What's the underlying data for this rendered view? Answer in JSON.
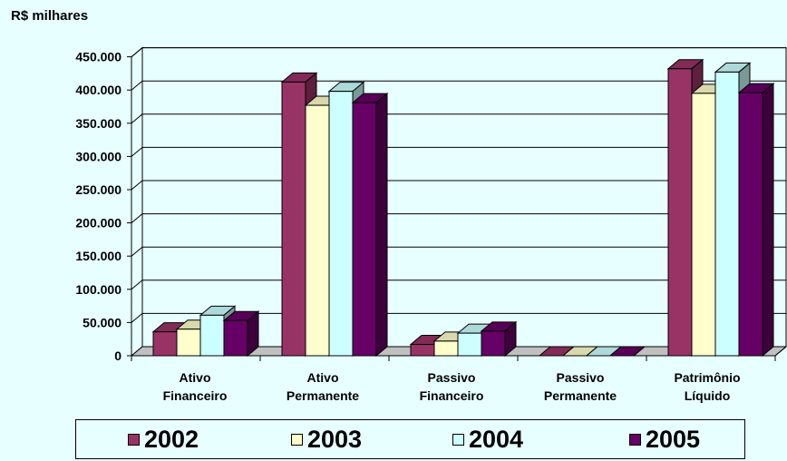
{
  "chart_data": {
    "type": "bar",
    "unit_label": "R$ milhares",
    "categories": [
      [
        "Ativo",
        "Financeiro"
      ],
      [
        "Ativo",
        "Permanente"
      ],
      [
        "Passivo",
        "Financeiro"
      ],
      [
        "Passivo",
        "Permanente"
      ],
      [
        "Patrimônio",
        "Líquido"
      ]
    ],
    "series": [
      {
        "name": "2002",
        "color": "#993366",
        "values": [
          36000,
          412000,
          17000,
          0,
          432000
        ]
      },
      {
        "name": "2003",
        "color": "#ffffcc",
        "values": [
          40000,
          377000,
          22000,
          0,
          395000
        ]
      },
      {
        "name": "2004",
        "color": "#ccffff",
        "values": [
          61000,
          398000,
          34000,
          0,
          427000
        ]
      },
      {
        "name": "2005",
        "color": "#660066",
        "values": [
          53000,
          381000,
          37000,
          0,
          396000
        ]
      }
    ],
    "yticks": [
      "0",
      "50.000",
      "100.000",
      "150.000",
      "200.000",
      "250.000",
      "300.000",
      "350.000",
      "400.000",
      "450.000"
    ],
    "ylim": [
      0,
      450000
    ],
    "grid": true,
    "legend_position": "bottom"
  }
}
